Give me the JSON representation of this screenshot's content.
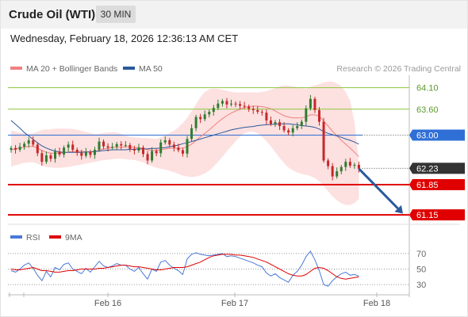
{
  "header": {
    "title": "Crude Oil (WTI)",
    "timeframe": "30 MIN",
    "datetime": "Wednesday, February 18, 2026 12:36:13 AM CET"
  },
  "legend": {
    "ma20": "MA 20 + Bollinger Bands",
    "ma50": "MA 50",
    "credit": "Research © 2026 Trading Central",
    "rsi": "RSI",
    "rsi_ma": "9MA"
  },
  "colors": {
    "ma20": "#f08080",
    "bands": "#fde0e0",
    "ma50": "#2a5a9c",
    "support": "#e00000",
    "resist": "#8cc63f",
    "pivot": "#2f6fd6",
    "last": "#333333",
    "up": "#2e7d32",
    "down": "#c62828",
    "rsi": "#4a78d8",
    "rsi_ma": "#e00000"
  },
  "chart_data": {
    "type": "line",
    "x_ticks": [
      "Feb 16",
      "Feb 17",
      "Feb 18"
    ],
    "ylim": [
      60.95,
      64.35
    ],
    "levels": [
      {
        "value": 64.1,
        "label": "64.10",
        "kind": "resistance"
      },
      {
        "value": 63.6,
        "label": "63.60",
        "kind": "resistance"
      },
      {
        "value": 63.0,
        "label": "63.00",
        "kind": "pivot"
      },
      {
        "value": 62.23,
        "label": "62.23",
        "kind": "last"
      },
      {
        "value": 61.85,
        "label": "61.85",
        "kind": "support"
      },
      {
        "value": 61.15,
        "label": "61.15",
        "kind": "support"
      }
    ],
    "forecast": {
      "from": [
        79,
        62.22
      ],
      "to": [
        89,
        61.18
      ]
    },
    "close": [
      62.7,
      62.66,
      62.73,
      62.8,
      62.88,
      62.78,
      62.58,
      62.38,
      62.53,
      62.45,
      62.62,
      62.55,
      62.71,
      62.78,
      62.66,
      62.59,
      62.52,
      62.61,
      62.54,
      62.66,
      62.85,
      62.74,
      62.71,
      62.73,
      62.79,
      62.76,
      62.77,
      62.68,
      62.64,
      62.71,
      62.56,
      62.41,
      62.63,
      62.58,
      62.83,
      62.88,
      62.78,
      62.71,
      62.65,
      62.57,
      62.91,
      63.16,
      63.42,
      63.37,
      63.48,
      63.54,
      63.63,
      63.73,
      63.79,
      63.71,
      63.73,
      63.72,
      63.68,
      63.66,
      63.61,
      63.58,
      63.54,
      63.52,
      63.34,
      63.26,
      63.3,
      63.21,
      63.11,
      63.06,
      63.16,
      63.21,
      63.31,
      63.62,
      63.84,
      63.58,
      63.31,
      62.41,
      62.28,
      62.04,
      62.16,
      62.26,
      62.38,
      62.29,
      62.31,
      62.22
    ],
    "ma20": [
      62.66,
      62.68,
      62.7,
      62.72,
      62.74,
      62.74,
      62.7,
      62.64,
      62.6,
      62.58,
      62.58,
      62.58,
      62.59,
      62.61,
      62.62,
      62.62,
      62.62,
      62.61,
      62.61,
      62.62,
      62.65,
      62.68,
      62.69,
      62.71,
      62.72,
      62.72,
      62.73,
      62.73,
      62.71,
      62.71,
      62.69,
      62.66,
      62.65,
      62.64,
      62.66,
      62.68,
      62.69,
      62.7,
      62.69,
      62.7,
      62.73,
      62.79,
      62.87,
      62.96,
      63.04,
      63.12,
      63.21,
      63.3,
      63.38,
      63.45,
      63.51,
      63.56,
      63.6,
      63.64,
      63.66,
      63.67,
      63.67,
      63.66,
      63.64,
      63.61,
      63.56,
      63.5,
      63.45,
      63.42,
      63.4,
      63.4,
      63.4,
      63.43,
      63.47,
      63.47,
      63.44,
      63.32,
      63.21,
      63.09,
      62.99,
      62.88,
      62.79,
      62.7,
      62.6,
      62.5
    ],
    "ma50": [
      63.34,
      63.25,
      63.16,
      63.06,
      62.98,
      62.9,
      62.82,
      62.75,
      62.7,
      62.66,
      62.63,
      62.61,
      62.6,
      62.6,
      62.6,
      62.6,
      62.6,
      62.61,
      62.61,
      62.62,
      62.63,
      62.64,
      62.65,
      62.66,
      62.66,
      62.66,
      62.66,
      62.67,
      62.67,
      62.68,
      62.68,
      62.68,
      62.69,
      62.69,
      62.7,
      62.71,
      62.73,
      62.75,
      62.77,
      62.8,
      62.82,
      62.85,
      62.88,
      62.91,
      62.94,
      62.97,
      63.0,
      63.03,
      63.06,
      63.09,
      63.12,
      63.14,
      63.16,
      63.18,
      63.19,
      63.2,
      63.22,
      63.23,
      63.24,
      63.25,
      63.25,
      63.26,
      63.26,
      63.26,
      63.25,
      63.24,
      63.22,
      63.21,
      63.2,
      63.18,
      63.14,
      63.08,
      63.04,
      63.01,
      62.98,
      62.95,
      62.91,
      62.88,
      62.84,
      62.79
    ],
    "band_upper": [
      63.11,
      63.08,
      63.06,
      63.04,
      63.03,
      63.04,
      63.08,
      63.12,
      63.13,
      63.13,
      63.15,
      63.15,
      63.15,
      63.15,
      63.14,
      63.12,
      63.1,
      63.07,
      63.05,
      63.02,
      63.03,
      63.05,
      63.06,
      63.07,
      63.06,
      63.03,
      62.99,
      62.96,
      62.95,
      62.94,
      62.93,
      62.93,
      62.92,
      62.91,
      62.95,
      63.0,
      63.05,
      63.1,
      63.18,
      63.28,
      63.4,
      63.55,
      63.72,
      63.88,
      64.0,
      64.06,
      64.08,
      64.07,
      64.05,
      64.03,
      64.0,
      63.99,
      63.99,
      63.99,
      63.99,
      63.99,
      63.99,
      64.0,
      64.02,
      64.05,
      64.09,
      64.13,
      64.15,
      64.15,
      64.13,
      64.11,
      64.09,
      64.08,
      64.12,
      64.15,
      64.18,
      64.22,
      64.24,
      64.24,
      64.2,
      64.13,
      64.0,
      63.8,
      63.3,
      62.35
    ],
    "band_lower": [
      62.27,
      62.3,
      62.33,
      62.36,
      62.37,
      62.37,
      62.34,
      62.29,
      62.26,
      62.25,
      62.24,
      62.24,
      62.25,
      62.26,
      62.28,
      62.3,
      62.32,
      62.34,
      62.36,
      62.38,
      62.4,
      62.42,
      62.43,
      62.44,
      62.45,
      62.45,
      62.44,
      62.43,
      62.42,
      62.4,
      62.37,
      62.32,
      62.28,
      62.24,
      62.22,
      62.2,
      62.17,
      62.14,
      62.1,
      62.06,
      62.04,
      62.03,
      62.04,
      62.07,
      62.11,
      62.18,
      62.27,
      62.38,
      62.5,
      62.62,
      62.74,
      62.86,
      62.96,
      63.04,
      63.08,
      63.08,
      63.04,
      62.96,
      62.86,
      62.74,
      62.61,
      62.47,
      62.35,
      62.25,
      62.18,
      62.13,
      62.1,
      62.08,
      62.05,
      62.0,
      61.93,
      61.82,
      61.7,
      61.58,
      61.49,
      61.42,
      61.38,
      61.38,
      61.42,
      61.52
    ],
    "rsi": {
      "ylim": [
        25,
        75
      ],
      "ticks": [
        70,
        50,
        30
      ],
      "values": [
        48,
        46,
        50,
        55,
        58,
        51,
        42,
        35,
        47,
        40,
        52,
        49,
        56,
        58,
        50,
        47,
        44,
        51,
        46,
        53,
        60,
        54,
        52,
        54,
        57,
        55,
        55,
        50,
        47,
        52,
        44,
        37,
        50,
        47,
        59,
        61,
        55,
        51,
        48,
        43,
        63,
        69,
        71,
        69,
        68,
        67,
        68,
        69,
        70,
        66,
        67,
        66,
        64,
        62,
        60,
        58,
        55,
        53,
        45,
        41,
        44,
        39,
        36,
        33,
        42,
        47,
        55,
        66,
        73,
        62,
        48,
        30,
        28,
        35,
        40,
        44,
        46,
        42,
        43,
        41
      ],
      "ma": [
        50,
        49,
        49,
        50,
        51,
        52,
        50,
        48,
        48,
        47,
        46,
        46,
        47,
        48,
        48,
        49,
        50,
        50,
        50,
        50,
        51,
        51,
        52,
        53,
        54,
        55,
        55,
        54,
        53,
        53,
        52,
        51,
        50,
        49,
        49,
        50,
        51,
        52,
        52,
        52,
        53,
        55,
        57,
        59,
        62,
        65,
        67,
        68,
        69,
        69,
        69,
        68,
        68,
        67,
        66,
        65,
        63,
        61,
        59,
        56,
        53,
        50,
        47,
        44,
        42,
        41,
        41,
        43,
        47,
        51,
        52,
        51,
        48,
        44,
        40,
        38,
        37,
        38,
        39,
        40
      ]
    }
  }
}
